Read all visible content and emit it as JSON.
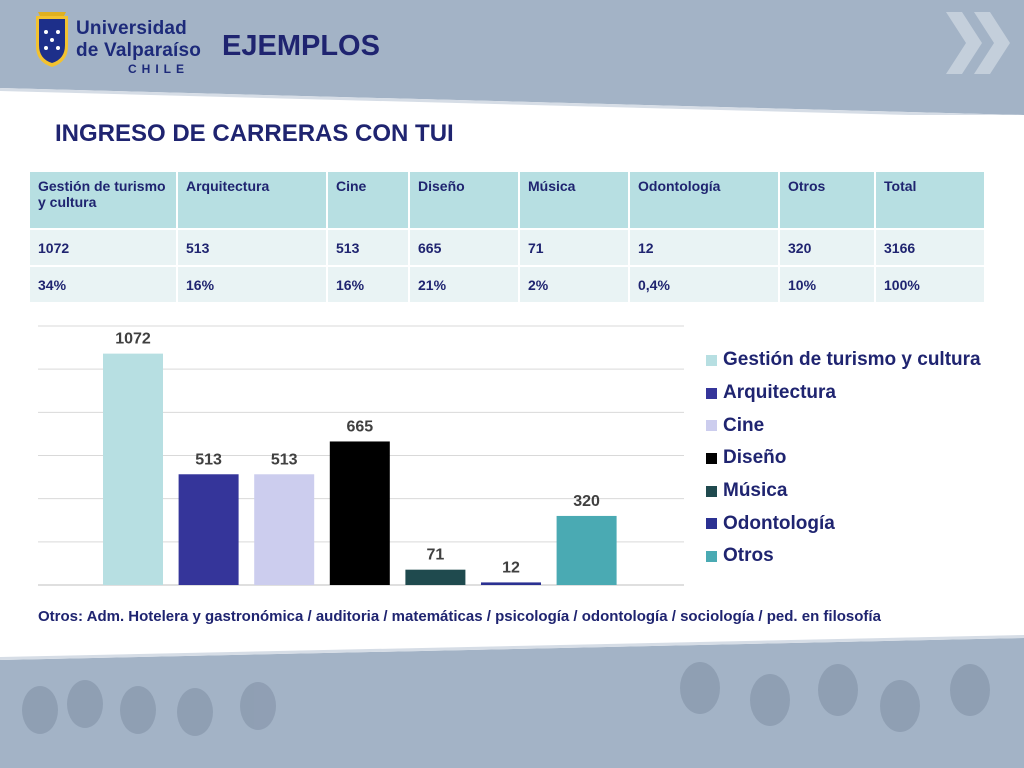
{
  "logo": {
    "line1": "Universidad",
    "line2": "de Valparaíso",
    "line3": "CHILE"
  },
  "title": "EJEMPLOS",
  "subtitle": "INGRESO DE CARRERAS CON TUI",
  "table": {
    "headers": [
      "Gestión de turismo y cultura",
      "Arquitectura",
      "Cine",
      "Diseño",
      "Música",
      "Odontología",
      "Otros",
      "Total"
    ],
    "rows": [
      [
        "1072",
        "513",
        "513",
        "665",
        "71",
        "12",
        "320",
        "3166"
      ],
      [
        "34%",
        "16%",
        "16%",
        "21%",
        "2%",
        "0,4%",
        "10%",
        "100%"
      ]
    ]
  },
  "chart_data": {
    "type": "bar",
    "title": "",
    "xlabel": "",
    "ylabel": "",
    "ylim": [
      0,
      1200
    ],
    "grid": true,
    "legend": "right",
    "categories": [
      "Gestión de turismo y cultura",
      "Arquitectura",
      "Cine",
      "Diseño",
      "Música",
      "Odontología",
      "Otros"
    ],
    "values": [
      1072,
      513,
      513,
      665,
      71,
      12,
      320
    ],
    "colors": [
      "#b7dfe2",
      "#35359a",
      "#cccdee",
      "#000000",
      "#1f4a4e",
      "#2b3192",
      "#4aaab3"
    ]
  },
  "note": "Otros: Adm. Hotelera y gastronómica / auditoria / matemáticas / psicología / odontología / sociología / ped. en filosofía"
}
